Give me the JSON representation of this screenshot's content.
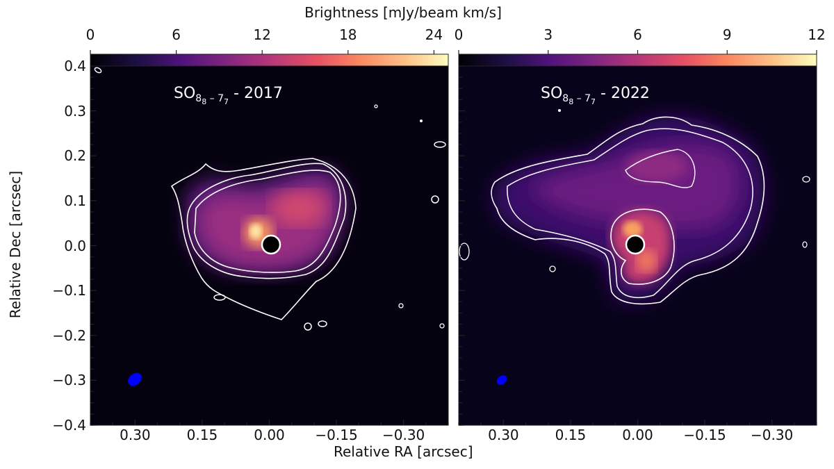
{
  "chart_data": [
    {
      "type": "heatmap",
      "panel": "left",
      "title_main": "SO",
      "title_sub": "8",
      "title_sub2": "8",
      "title_mid": " – 7",
      "title_sub3": "7",
      "title_year": " - 2017",
      "colorbar": {
        "range": [
          0,
          25
        ],
        "ticks": [
          0,
          6,
          12,
          18,
          24
        ],
        "colormap": "magma"
      },
      "xlim": [
        0.4,
        -0.4
      ],
      "ylim": [
        -0.4,
        0.4
      ],
      "xticks": [
        "0.30",
        "0.15",
        "0.00",
        "−0.15",
        "−0.30"
      ],
      "xtick_values": [
        0.3,
        0.15,
        0.0,
        -0.15,
        -0.3
      ],
      "yticks": [
        "0.4",
        "0.3",
        "0.2",
        "0.1",
        "0.0",
        "−0.1",
        "−0.2",
        "−0.3",
        "−0.4"
      ],
      "ytick_values": [
        0.4,
        0.3,
        0.2,
        0.1,
        0.0,
        -0.1,
        -0.2,
        -0.3,
        -0.4
      ],
      "beam_color": "#0000ff"
    },
    {
      "type": "heatmap",
      "panel": "right",
      "title_main": "SO",
      "title_sub": "8",
      "title_sub2": "8",
      "title_mid": " – 7",
      "title_sub3": "7",
      "title_year": " - 2022",
      "colorbar": {
        "range": [
          0,
          12
        ],
        "ticks": [
          0,
          3,
          6,
          9,
          12
        ],
        "colormap": "magma"
      },
      "xlim": [
        0.4,
        -0.4
      ],
      "ylim": [
        -0.4,
        0.4
      ],
      "xticks": [
        "0.30",
        "0.15",
        "0.00",
        "−0.15",
        "−0.30"
      ],
      "xtick_values": [
        0.3,
        0.15,
        0.0,
        -0.15,
        -0.3
      ],
      "beam_color": "#0000ff"
    }
  ],
  "colorbar_label": "Brightness [mJy/beam km/s]",
  "xlabel": "Relative RA [arcsec]",
  "ylabel": "Relative Dec [arcsec]"
}
